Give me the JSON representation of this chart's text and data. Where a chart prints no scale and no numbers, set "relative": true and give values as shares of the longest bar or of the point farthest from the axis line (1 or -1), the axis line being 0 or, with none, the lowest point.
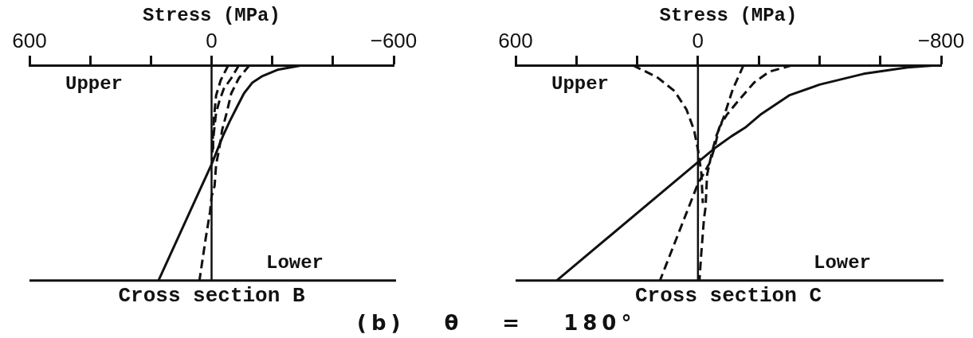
{
  "chart_data": [
    {
      "type": "line",
      "title": "Cross section B",
      "xlabel": "Stress (MPa)",
      "relative": true,
      "xlim": [
        600,
        -600
      ],
      "xticks": [
        {
          "value": 600,
          "label": "600"
        },
        {
          "value": 400,
          "label": null
        },
        {
          "value": 200,
          "label": null
        },
        {
          "value": 0,
          "label": "0"
        },
        {
          "value": -200,
          "label": null
        },
        {
          "value": -400,
          "label": null
        },
        {
          "value": -600,
          "label": "−600"
        }
      ],
      "ref_lines": [
        {
          "axis": "x",
          "value": 0,
          "color": "#111111"
        }
      ],
      "annotations": [
        "Upper",
        "Lower",
        "(b) θ = 180°"
      ],
      "series": [
        {
          "color": "#111111",
          "line_style": "solid",
          "x": [
            175,
            0,
            -20,
            -37,
            -60,
            -85,
            -107,
            -135,
            -168,
            -220,
            -260,
            -300
          ],
          "values": [
            0,
            0.54,
            0.61,
            0.67,
            0.74,
            0.81,
            0.87,
            0.92,
            0.95,
            0.98,
            0.99,
            1
          ]
        },
        {
          "color": "#111111",
          "line_style": "dashed",
          "x": [
            -125,
            -90,
            -65,
            -50,
            -35,
            -25,
            -15,
            -10,
            0,
            5,
            20,
            40
          ],
          "values": [
            1,
            0.94,
            0.87,
            0.78,
            0.7,
            0.61,
            0.54,
            0.44,
            0.39,
            0.32,
            0.19,
            0
          ]
        },
        {
          "color": "#111111",
          "line_style": "dashed",
          "x": [
            -90,
            -65,
            -40,
            -25,
            -15,
            -10,
            -5,
            -5
          ],
          "values": [
            1,
            0.94,
            0.89,
            0.83,
            0.78,
            0.72,
            0.65,
            0.59
          ]
        },
        {
          "color": "#111111",
          "line_style": "dashed",
          "x": [
            -55,
            -30,
            -15,
            -8,
            -4,
            -2
          ],
          "values": [
            1,
            0.93,
            0.86,
            0.76,
            0.66,
            0.56
          ]
        }
      ]
    },
    {
      "type": "line",
      "title": "Cross section C",
      "xlabel": "Stress (MPa)",
      "relative": true,
      "xlim": [
        600,
        -800
      ],
      "xticks": [
        {
          "value": 600,
          "label": "600"
        },
        {
          "value": 400,
          "label": null
        },
        {
          "value": 200,
          "label": null
        },
        {
          "value": 0,
          "label": "0"
        },
        {
          "value": -200,
          "label": null
        },
        {
          "value": -400,
          "label": null
        },
        {
          "value": -600,
          "label": null
        },
        {
          "value": -800,
          "label": "−800"
        }
      ],
      "ref_lines": [
        {
          "axis": "x",
          "value": 0,
          "color": "#111111"
        }
      ],
      "annotations": [
        "Upper",
        "Lower"
      ],
      "series": [
        {
          "color": "#111111",
          "line_style": "solid",
          "x": [
            465,
            0,
            -60,
            -110,
            -155,
            -205,
            -300,
            -400,
            -545,
            -690,
            -790
          ],
          "values": [
            0,
            0.55,
            0.62,
            0.67,
            0.71,
            0.77,
            0.86,
            0.91,
            0.96,
            0.99,
            1
          ]
        },
        {
          "color": "#111111",
          "line_style": "dashed",
          "x": [
            -310,
            -235,
            -185,
            -130,
            -95,
            -70,
            -55,
            -40,
            0,
            125
          ],
          "values": [
            1,
            0.97,
            0.92,
            0.83,
            0.77,
            0.71,
            0.62,
            0.55,
            0.45,
            0
          ]
        },
        {
          "color": "#111111",
          "line_style": "dashed",
          "x": [
            -150,
            -115,
            -85,
            -60,
            -45,
            -30,
            -25,
            -20,
            -10,
            -5
          ],
          "values": [
            1,
            0.89,
            0.76,
            0.67,
            0.59,
            0.49,
            0.34,
            0.29,
            0.11,
            0
          ]
        },
        {
          "color": "#111111",
          "line_style": "dashed",
          "x": [
            215,
            135,
            77,
            38,
            13,
            -1,
            -11,
            -16
          ],
          "values": [
            1,
            0.945,
            0.88,
            0.795,
            0.7,
            0.6,
            0.5,
            0.36
          ]
        }
      ]
    }
  ]
}
